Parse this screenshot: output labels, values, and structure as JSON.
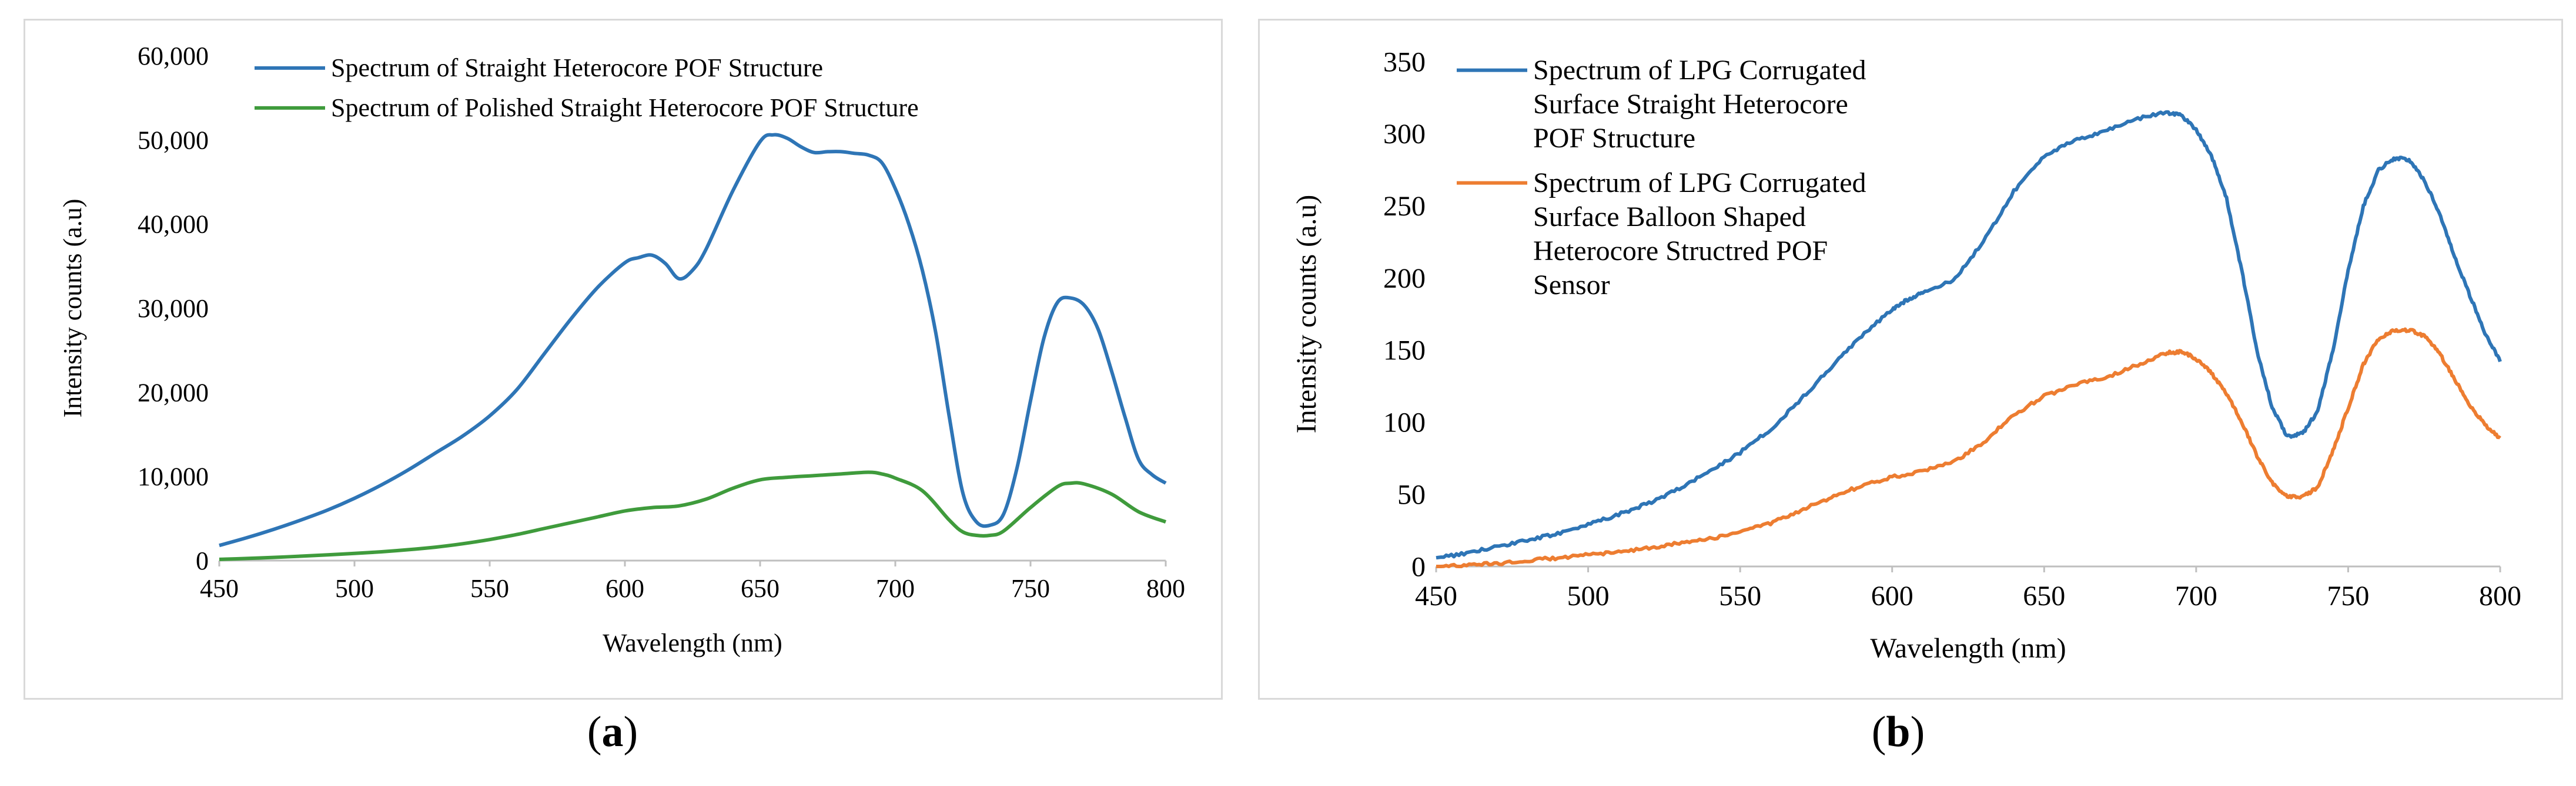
{
  "captions": {
    "a_letter": "a",
    "b_letter": "b"
  },
  "chart_data": [
    {
      "type": "line",
      "panel": "a",
      "title": "",
      "xlabel": "Wavelength (nm)",
      "ylabel": "Intensity counts (a.u)",
      "xlim": [
        450,
        800
      ],
      "ylim": [
        0,
        60000
      ],
      "xticks": [
        450,
        500,
        550,
        600,
        650,
        700,
        750,
        800
      ],
      "yticks": [
        0,
        10000,
        20000,
        30000,
        40000,
        50000,
        60000
      ],
      "ytick_labels": [
        "0",
        "10,000",
        "20,000",
        "30,000",
        "40,000",
        "50,000",
        "60,000"
      ],
      "legend_position": "top-left",
      "series": [
        {
          "name": "Spectrum of Straight Heterocore POF Structure",
          "color": "#2e75b6",
          "x": [
            450,
            460,
            470,
            480,
            490,
            500,
            510,
            520,
            530,
            540,
            550,
            560,
            570,
            580,
            590,
            600,
            605,
            610,
            615,
            620,
            625,
            630,
            640,
            650,
            655,
            660,
            665,
            670,
            675,
            680,
            685,
            690,
            695,
            700,
            705,
            710,
            715,
            720,
            725,
            730,
            735,
            740,
            745,
            750,
            755,
            760,
            765,
            770,
            775,
            780,
            785,
            790,
            795,
            800
          ],
          "y": [
            1800,
            2700,
            3700,
            4800,
            6000,
            7400,
            9000,
            10800,
            12800,
            14800,
            17200,
            20300,
            24500,
            28700,
            32500,
            35400,
            36000,
            36300,
            35300,
            33500,
            34500,
            37000,
            44000,
            49800,
            50600,
            50200,
            49200,
            48500,
            48600,
            48600,
            48400,
            48200,
            47300,
            44200,
            40000,
            34500,
            27000,
            17000,
            8000,
            4600,
            4200,
            5500,
            11000,
            19000,
            26500,
            30700,
            31200,
            30300,
            27500,
            22500,
            17000,
            12000,
            10200,
            9200
          ]
        },
        {
          "name": "Spectrum of Polished Straight Heterocore POF Structure",
          "color": "#3f9b3c",
          "x": [
            450,
            460,
            470,
            480,
            490,
            500,
            510,
            520,
            530,
            540,
            550,
            560,
            570,
            580,
            590,
            600,
            610,
            620,
            630,
            640,
            650,
            660,
            670,
            680,
            690,
            695,
            700,
            710,
            720,
            725,
            730,
            735,
            740,
            750,
            760,
            765,
            770,
            780,
            790,
            800
          ],
          "y": [
            150,
            250,
            380,
            520,
            680,
            850,
            1050,
            1300,
            1600,
            2000,
            2500,
            3100,
            3800,
            4500,
            5200,
            5900,
            6300,
            6500,
            7300,
            8600,
            9600,
            9900,
            10100,
            10300,
            10500,
            10300,
            9800,
            8300,
            4800,
            3400,
            3000,
            3000,
            3500,
            6300,
            8800,
            9200,
            9100,
            7900,
            5800,
            4600
          ]
        }
      ]
    },
    {
      "type": "line",
      "panel": "b",
      "title": "",
      "xlabel": "Wavelength (nm)",
      "ylabel": "Intensity counts (a.u)",
      "xlim": [
        450,
        800
      ],
      "ylim": [
        0,
        350
      ],
      "xticks": [
        450,
        500,
        550,
        600,
        650,
        700,
        750,
        800
      ],
      "yticks": [
        0,
        50,
        100,
        150,
        200,
        250,
        300,
        350
      ],
      "ytick_labels": [
        "0",
        "50",
        "100",
        "150",
        "200",
        "250",
        "300",
        "350"
      ],
      "legend_position": "top-left",
      "series": [
        {
          "name": "Spectrum of LPG Corrugated Surface Straight Heterocore POF Structure",
          "legend_lines": [
            "Spectrum of LPG Corrugated",
            "Surface Straight Heterocore",
            "POF Structure"
          ],
          "color": "#2e75b6",
          "x": [
            450,
            460,
            470,
            480,
            490,
            500,
            510,
            520,
            530,
            540,
            550,
            560,
            570,
            580,
            590,
            600,
            605,
            610,
            620,
            630,
            640,
            650,
            660,
            670,
            680,
            690,
            695,
            700,
            705,
            710,
            715,
            720,
            725,
            730,
            735,
            740,
            745,
            750,
            755,
            760,
            765,
            770,
            775,
            780,
            785,
            790,
            795,
            800
          ],
          "y": [
            6,
            9,
            14,
            18,
            23,
            29,
            36,
            44,
            54,
            66,
            79,
            95,
            116,
            138,
            160,
            178,
            185,
            190,
            198,
            225,
            260,
            285,
            295,
            302,
            310,
            315,
            313,
            303,
            285,
            255,
            205,
            150,
            110,
            90,
            92,
            108,
            150,
            205,
            250,
            275,
            283,
            282,
            268,
            245,
            215,
            188,
            162,
            142
          ]
        },
        {
          "name": "Spectrum of LPG Corrugated Surface Balloon Shaped Heterocore Structred POF Sensor",
          "legend_lines": [
            "Spectrum of LPG Corrugated",
            "Surface Balloon Shaped",
            "Heterocore Structred POF",
            "Sensor"
          ],
          "color": "#ed7d31",
          "x": [
            450,
            460,
            470,
            480,
            490,
            500,
            510,
            520,
            530,
            540,
            550,
            560,
            570,
            580,
            590,
            600,
            610,
            620,
            630,
            640,
            650,
            660,
            670,
            680,
            690,
            695,
            700,
            705,
            710,
            715,
            720,
            725,
            730,
            735,
            740,
            745,
            750,
            755,
            760,
            765,
            770,
            775,
            780,
            785,
            790,
            795,
            800
          ],
          "y": [
            0,
            1,
            2,
            4,
            6,
            8,
            10,
            13,
            16,
            19,
            24,
            30,
            39,
            48,
            56,
            62,
            66,
            72,
            86,
            105,
            118,
            126,
            131,
            139,
            148,
            149,
            144,
            134,
            120,
            100,
            77,
            58,
            48,
            48,
            55,
            80,
            110,
            140,
            158,
            164,
            164,
            160,
            148,
            130,
            112,
            98,
            89
          ]
        }
      ]
    }
  ]
}
